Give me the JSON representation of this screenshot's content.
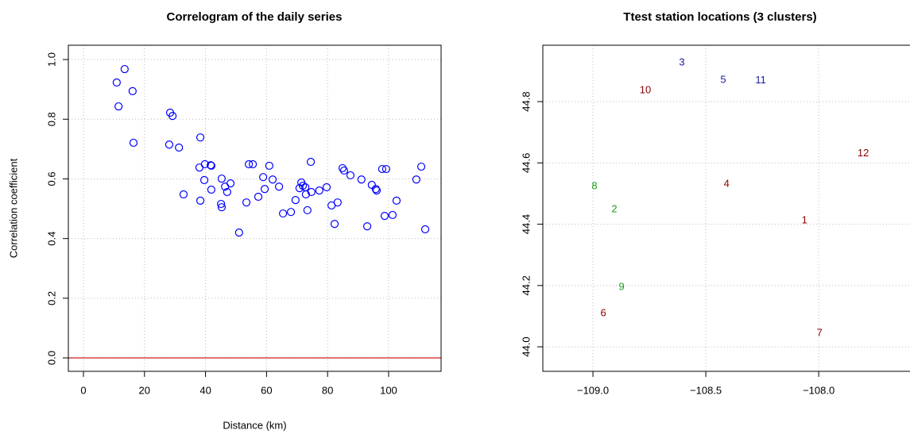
{
  "chart_data": [
    {
      "type": "scatter",
      "title": "Correlogram of the daily series",
      "x_label": "Distance (km)",
      "y_label": "Correlation coefficient",
      "color": "#0000ff",
      "marker": "open-circle",
      "grid": true,
      "reference_line": {
        "value": 0,
        "color": "#cc0000"
      },
      "xlim": [
        -4.95,
        117.2
      ],
      "ylim": [
        -0.045,
        1.048
      ],
      "xticks": [
        0,
        20,
        40,
        60,
        80,
        100
      ],
      "yticks": [
        {
          "value": 0,
          "label": "0.0"
        },
        0.2,
        0.4,
        0.6,
        0.8,
        {
          "value": 1,
          "label": "1.0"
        }
      ],
      "x": [
        10.9,
        13.5,
        11.5,
        16.1,
        16.4,
        28.4,
        29.2,
        28.1,
        31.3,
        32.8,
        38.3,
        38.0,
        39.8,
        41.7,
        41.9,
        39.6,
        38.3,
        41.9,
        45.3,
        46.4,
        47.1,
        48.2,
        45.1,
        45.3,
        51.0,
        53.4,
        54.2,
        55.5,
        57.3,
        58.9,
        59.4,
        60.9,
        62.0,
        64.1,
        65.4,
        68.0,
        69.5,
        70.8,
        71.4,
        71.9,
        72.7,
        72.9,
        73.4,
        74.5,
        74.7,
        77.3,
        79.7,
        81.3,
        83.3,
        82.3,
        84.9,
        85.4,
        87.5,
        91.1,
        93.0,
        94.5,
        95.8,
        96.1,
        97.9,
        99.2,
        98.7,
        101.3,
        102.6,
        109.1,
        110.7,
        112.0
      ],
      "values": [
        0.923,
        0.968,
        0.843,
        0.894,
        0.721,
        0.822,
        0.811,
        0.715,
        0.705,
        0.548,
        0.739,
        0.638,
        0.649,
        0.646,
        0.644,
        0.596,
        0.527,
        0.564,
        0.601,
        0.574,
        0.556,
        0.585,
        0.516,
        0.505,
        0.42,
        0.521,
        0.649,
        0.649,
        0.54,
        0.606,
        0.566,
        0.644,
        0.598,
        0.574,
        0.484,
        0.489,
        0.529,
        0.569,
        0.588,
        0.577,
        0.572,
        0.548,
        0.495,
        0.657,
        0.556,
        0.561,
        0.572,
        0.511,
        0.521,
        0.449,
        0.636,
        0.628,
        0.612,
        0.598,
        0.441,
        0.58,
        0.566,
        0.561,
        0.633,
        0.633,
        0.476,
        0.479,
        0.527,
        0.598,
        0.641,
        0.431
      ]
    },
    {
      "type": "scatter",
      "title": "Ttest station locations (3 clusters)",
      "grid": true,
      "xlim": [
        -109.222,
        -107.49
      ],
      "ylim": [
        43.92,
        44.984
      ],
      "xticks": [
        {
          "value": -109,
          "label": "−109.0"
        },
        {
          "value": -108.5,
          "label": "−108.5"
        },
        {
          "value": -108,
          "label": "−108.0"
        }
      ],
      "yticks": [
        {
          "value": 44,
          "label": "44.0"
        },
        44.2,
        44.4,
        44.6,
        44.8
      ],
      "labels": [
        "3",
        "5",
        "11",
        "10",
        "12",
        "4",
        "1",
        "7",
        "6",
        "8",
        "2",
        "9"
      ],
      "colors": [
        "#1a1aa6",
        "#1a1aa6",
        "#1a1aa6",
        "#8b0000",
        "#8b0000",
        "#8b0000",
        "#8b0000",
        "#8b0000",
        "#8b0000",
        "#1e9a1e",
        "#1e9a1e",
        "#1e9a1e"
      ],
      "x": [
        -108.606,
        -108.423,
        -108.257,
        -108.768,
        -107.803,
        -108.408,
        -108.063,
        -107.996,
        -108.954,
        -108.993,
        -108.905,
        -108.873
      ],
      "values": [
        44.927,
        44.87,
        44.868,
        44.836,
        44.631,
        44.531,
        44.412,
        44.044,
        44.109,
        44.523,
        44.448,
        44.194
      ]
    }
  ]
}
